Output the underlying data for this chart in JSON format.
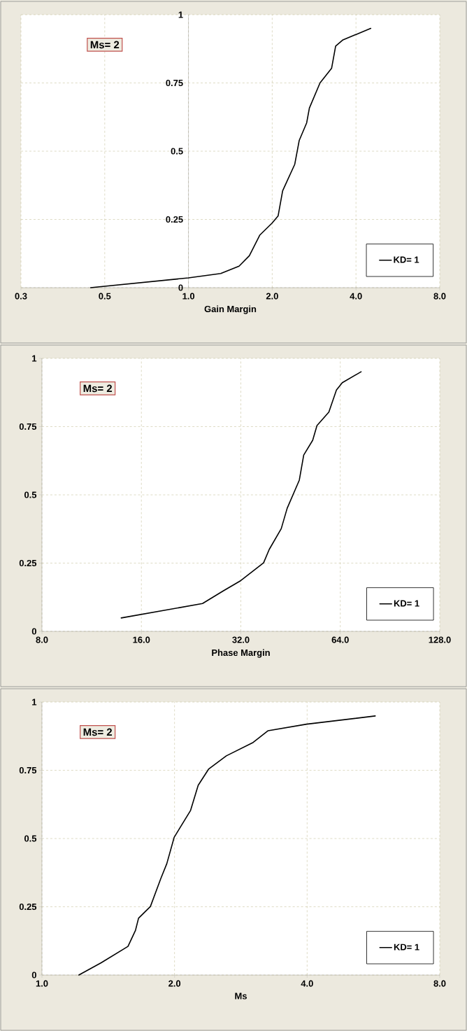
{
  "chart_data": [
    {
      "type": "line",
      "xlabel": "Gain Margin",
      "annotations": [
        "Ms= 2"
      ],
      "log": "x",
      "grid": true,
      "legend": "bottom right",
      "xlim": [
        0.25,
        8
      ],
      "xticks": [
        {
          "value": 0.25,
          "label": "0.3"
        },
        {
          "value": 0.5,
          "label": "0.5"
        },
        {
          "value": 1,
          "label": "1.0"
        },
        {
          "value": 2,
          "label": "2.0"
        },
        {
          "value": 4,
          "label": "4.0"
        },
        {
          "value": 8,
          "label": "8.0"
        }
      ],
      "ylim": [
        0,
        1
      ],
      "yticks": [
        0,
        0.25,
        0.5,
        0.75,
        1
      ],
      "series": [
        {
          "name": "KD= 1",
          "color": "#000000",
          "x": [
            0.445,
            1.0,
            1.306,
            1.52,
            1.655,
            1.806,
            1.995,
            2.1,
            2.18,
            2.41,
            2.5,
            2.66,
            2.72,
            2.97,
            3.27,
            3.38,
            3.58,
            4.52
          ],
          "values": [
            0,
            0.036,
            0.052,
            0.079,
            0.117,
            0.193,
            0.236,
            0.263,
            0.355,
            0.452,
            0.539,
            0.604,
            0.658,
            0.75,
            0.804,
            0.885,
            0.907,
            0.95
          ]
        }
      ]
    },
    {
      "type": "line",
      "xlabel": "Phase Margin",
      "annotations": [
        "Ms= 2"
      ],
      "log": "x",
      "grid": true,
      "legend": "bottom right",
      "xlim": [
        8,
        128
      ],
      "xticks": [
        {
          "value": 8,
          "label": "8.0"
        },
        {
          "value": 16,
          "label": "16.0"
        },
        {
          "value": 32,
          "label": "32.0"
        },
        {
          "value": 64,
          "label": "64.0"
        },
        {
          "value": 128,
          "label": "128.0"
        }
      ],
      "ylim": [
        0,
        1
      ],
      "yticks": [
        0,
        0.25,
        0.5,
        0.75,
        1
      ],
      "series": [
        {
          "name": "KD= 1",
          "color": "#000000",
          "x": [
            13.9,
            24.5,
            28.3,
            32,
            37.5,
            39.0,
            42.4,
            44.2,
            48.1,
            49.6,
            52.8,
            54.4,
            59.1,
            62.3,
            64.9,
            74.0
          ],
          "values": [
            0.049,
            0.102,
            0.148,
            0.186,
            0.251,
            0.3,
            0.376,
            0.451,
            0.554,
            0.646,
            0.7,
            0.754,
            0.803,
            0.884,
            0.911,
            0.951
          ]
        }
      ]
    },
    {
      "type": "line",
      "xlabel": "Ms",
      "annotations": [
        "Ms= 2"
      ],
      "log": "x",
      "grid": true,
      "legend": "bottom right",
      "xlim": [
        1,
        8
      ],
      "xticks": [
        {
          "value": 1,
          "label": "1.0"
        },
        {
          "value": 2,
          "label": "2.0"
        },
        {
          "value": 4,
          "label": "4.0"
        },
        {
          "value": 8,
          "label": "8.0"
        }
      ],
      "ylim": [
        0,
        1
      ],
      "yticks": [
        0,
        0.25,
        0.5,
        0.75,
        1
      ],
      "series": [
        {
          "name": "KD= 1",
          "color": "#000000",
          "x": [
            1.213,
            1.363,
            1.568,
            1.631,
            1.657,
            1.763,
            1.862,
            1.921,
            1.997,
            2.175,
            2.263,
            2.389,
            2.622,
            3.017,
            3.262,
            3.99,
            5.71
          ],
          "values": [
            0,
            0.045,
            0.105,
            0.164,
            0.208,
            0.251,
            0.354,
            0.408,
            0.505,
            0.603,
            0.695,
            0.754,
            0.803,
            0.852,
            0.895,
            0.919,
            0.949
          ]
        }
      ]
    }
  ]
}
